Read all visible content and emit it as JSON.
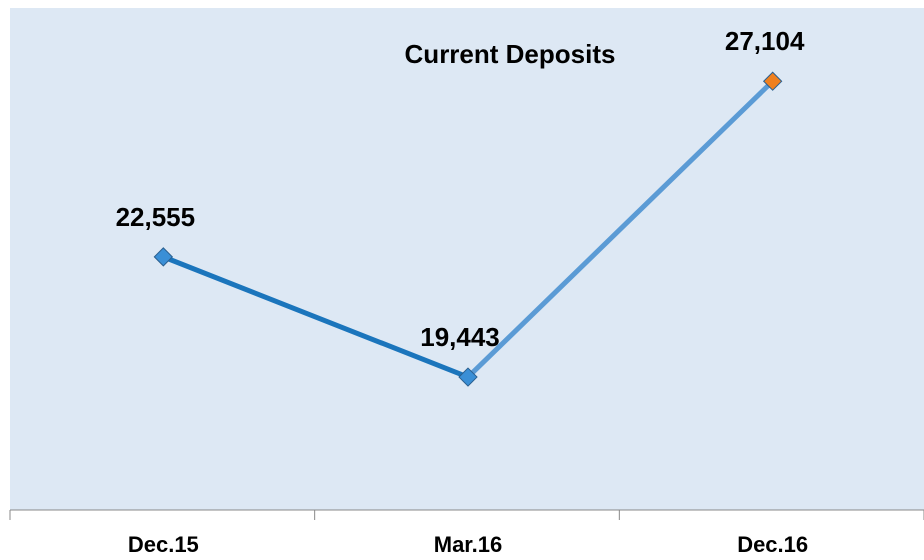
{
  "chart_data": {
    "type": "line",
    "title": "Current Deposits",
    "categories": [
      "Dec.15",
      "Mar.16",
      "Dec.16"
    ],
    "values": [
      22555,
      19443,
      27104
    ],
    "value_labels": [
      "22,555",
      "19,443",
      "27,104"
    ],
    "segment_colors": [
      "#1b75bc",
      "#5b9bd5"
    ],
    "point_colors": [
      "#3a8fd6",
      "#3a8fd6",
      "#f0801e"
    ],
    "ylim": [
      16000,
      29000
    ]
  }
}
